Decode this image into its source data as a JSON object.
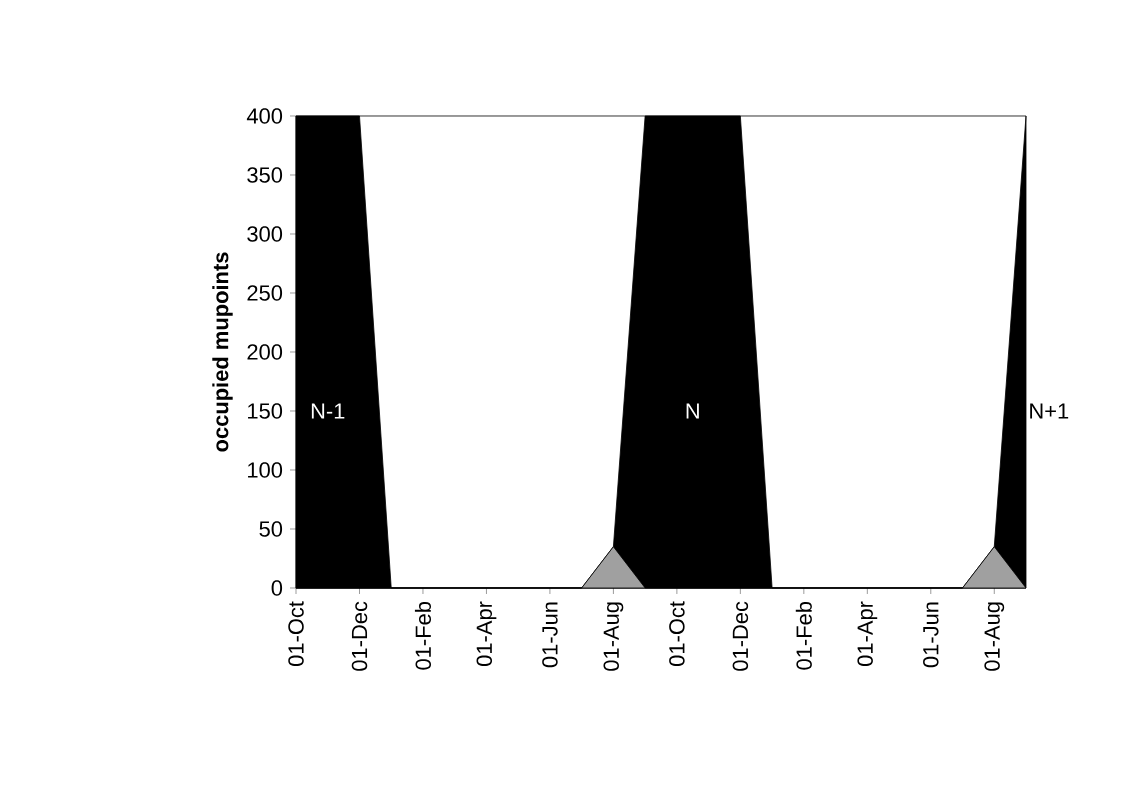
{
  "chart_data": {
    "type": "area",
    "ylabel": "occupied mupoints",
    "categories": [
      "01-Oct",
      null,
      "01-Dec",
      null,
      "01-Feb",
      null,
      "01-Apr",
      null,
      "01-Jun",
      null,
      "01-Aug",
      null,
      "01-Oct",
      null,
      "01-Dec",
      null,
      "01-Feb",
      null,
      "01-Apr",
      null,
      "01-Jun",
      null,
      "01-Aug",
      null
    ],
    "ylim": [
      0,
      400
    ],
    "yticks": [
      0,
      50,
      100,
      150,
      200,
      250,
      300,
      350,
      400
    ],
    "series": [
      {
        "color": "#000000",
        "values": [
          400,
          400,
          400,
          0,
          0,
          0,
          0,
          0,
          0,
          0,
          35,
          400,
          400,
          400,
          400,
          0,
          0,
          0,
          0,
          0,
          0,
          0,
          35,
          400
        ]
      },
      {
        "color": "#a0a0a0",
        "values": [
          0,
          0,
          0,
          0,
          0,
          0,
          0,
          0,
          0,
          0,
          35,
          0,
          0,
          0,
          0,
          0,
          0,
          0,
          0,
          0,
          0,
          0,
          35,
          0
        ]
      }
    ],
    "annotations": [
      "N-1",
      "N",
      "N+1"
    ]
  }
}
